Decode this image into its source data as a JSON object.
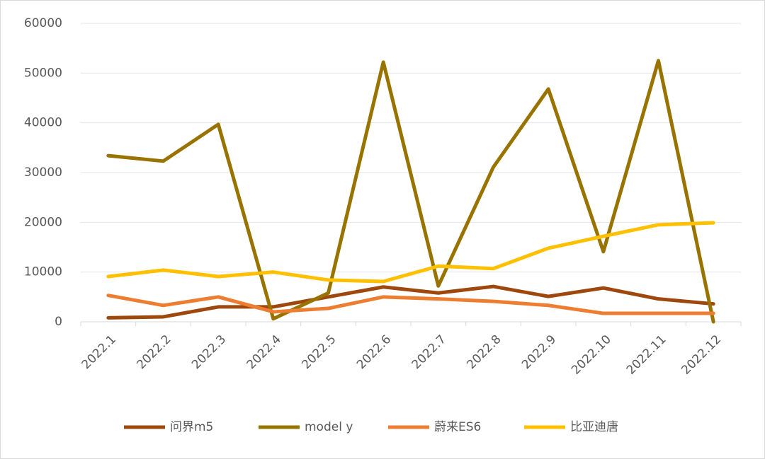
{
  "chart_data": {
    "type": "line",
    "categories": [
      "2022.1",
      "2022.2",
      "2022.3",
      "2022.4",
      "2022.5",
      "2022.6",
      "2022.7",
      "2022.8",
      "2022.9",
      "2022.10",
      "2022.11",
      "2022.12"
    ],
    "series": [
      {
        "name": "问界m5",
        "color": "#9e480e",
        "values": [
          800,
          1000,
          3000,
          3000,
          5000,
          7000,
          5800,
          7100,
          5100,
          6800,
          4600,
          3600
        ]
      },
      {
        "name": "model y",
        "color": "#997300",
        "values": [
          33400,
          32300,
          39700,
          600,
          5800,
          52200,
          7200,
          31100,
          46800,
          14100,
          52500,
          0
        ]
      },
      {
        "name": "蔚来ES6",
        "color": "#ed7d31",
        "values": [
          5300,
          3300,
          5000,
          2000,
          2700,
          5000,
          4600,
          4100,
          3300,
          1700,
          1700,
          1700
        ]
      },
      {
        "name": "比亚迪唐",
        "color": "#ffc000",
        "values": [
          9100,
          10400,
          9100,
          10000,
          8400,
          8100,
          11200,
          10700,
          14800,
          17200,
          19500,
          19900
        ]
      }
    ],
    "ylim": [
      0,
      60000
    ],
    "yticks": [
      0,
      10000,
      20000,
      30000,
      40000,
      50000,
      60000
    ],
    "grid": true,
    "legend": "bottom"
  }
}
